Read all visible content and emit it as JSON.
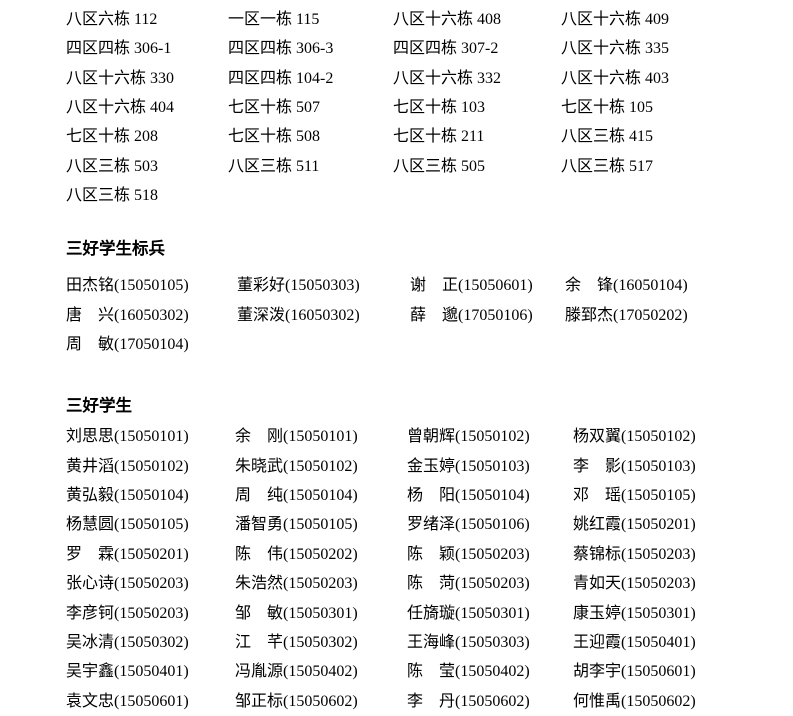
{
  "page": {
    "background_color": "#ffffff",
    "text_color": "#000000"
  },
  "dorm_list": {
    "rows": [
      [
        "八区六栋 112",
        "一区一栋 115",
        "八区十六栋 408",
        "八区十六栋 409"
      ],
      [
        "四区四栋 306-1",
        "四区四栋 306-3",
        "四区四栋 307-2",
        "八区十六栋 335"
      ],
      [
        "八区十六栋 330",
        "四区四栋 104-2",
        "八区十六栋 332",
        "八区十六栋 403"
      ],
      [
        "八区十六栋 404",
        "七区十栋 507",
        "七区十栋 103",
        "七区十栋 105"
      ],
      [
        "七区十栋 208",
        "七区十栋 508",
        "七区十栋 211",
        "八区三栋 415"
      ],
      [
        "八区三栋 503",
        "八区三栋 511",
        "八区三栋 505",
        "八区三栋 517"
      ],
      [
        "八区三栋 518"
      ]
    ]
  },
  "pacesetters": {
    "heading": "三好学生标兵",
    "rows": [
      [
        "田杰铭(15050105)",
        "董彩好(15050303)",
        "谢　正(15050601)",
        "余　锋(16050104)"
      ],
      [
        "唐　兴(16050302)",
        "董深泼(16050302)",
        "薛　邈(17050106)",
        "滕郅杰(17050202)"
      ],
      [
        "周　敏(17050104)"
      ]
    ]
  },
  "three_good_students": {
    "heading": "三好学生",
    "rows": [
      [
        "刘思思(15050101)",
        "余　刚(15050101)",
        "曾朝辉(15050102)",
        "杨双翼(15050102)"
      ],
      [
        "黄井滔(15050102)",
        "朱晓武(15050102)",
        "金玉婷(15050103)",
        "李　影(15050103)"
      ],
      [
        "黄弘毅(15050104)",
        "周　纯(15050104)",
        "杨　阳(15050104)",
        "邓　瑶(15050105)"
      ],
      [
        "杨慧圆(15050105)",
        "潘智勇(15050105)",
        "罗绪泽(15050106)",
        "姚红霞(15050201)"
      ],
      [
        "罗　霖(15050201)",
        "陈　伟(15050202)",
        "陈　颖(15050203)",
        "蔡锦标(15050203)"
      ],
      [
        "张心诗(15050203)",
        "朱浩然(15050203)",
        "陈　菏(15050203)",
        "青如天(15050203)"
      ],
      [
        "李彦钶(15050203)",
        "邹　敏(15050301)",
        "任旖璇(15050301)",
        "康玉婷(15050301)"
      ],
      [
        "吴冰清(15050302)",
        "江　芊(15050302)",
        "王海峰(15050303)",
        "王迎霞(15050401)"
      ],
      [
        "吴宇鑫(15050401)",
        "冯胤源(15050402)",
        "陈　莹(15050402)",
        "胡李宇(15050601)"
      ],
      [
        "袁文忠(15050601)",
        "邹正标(15050602)",
        "李　丹(15050602)",
        "何惟禹(15050602)"
      ]
    ]
  }
}
